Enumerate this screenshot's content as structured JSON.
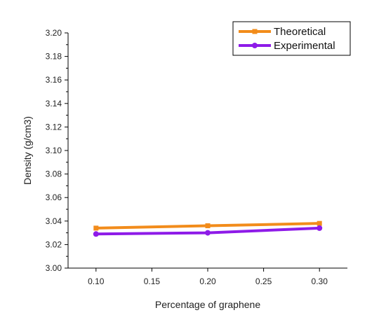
{
  "chart_data": {
    "type": "line",
    "title": "",
    "xlabel": "Percentage of graphene",
    "ylabel": "Density (g/cm3)",
    "x": [
      0.1,
      0.2,
      0.3
    ],
    "x_ticks": [
      "0.10",
      "0.15",
      "0.20",
      "0.25",
      "0.30"
    ],
    "y_ticks": [
      "3.00",
      "3.02",
      "3.04",
      "3.06",
      "3.08",
      "3.10",
      "3.12",
      "3.14",
      "3.16",
      "3.18",
      "3.20"
    ],
    "xlim": [
      0.075,
      0.325
    ],
    "ylim": [
      3.0,
      3.2
    ],
    "grid": false,
    "legend_position": "top-right",
    "series": [
      {
        "name": "Theoretical",
        "color": "#F28C1B",
        "marker": "square",
        "values": [
          3.034,
          3.036,
          3.038
        ]
      },
      {
        "name": "Experimental",
        "color": "#8E1BE8",
        "marker": "circle",
        "values": [
          3.029,
          3.03,
          3.034
        ]
      }
    ]
  }
}
